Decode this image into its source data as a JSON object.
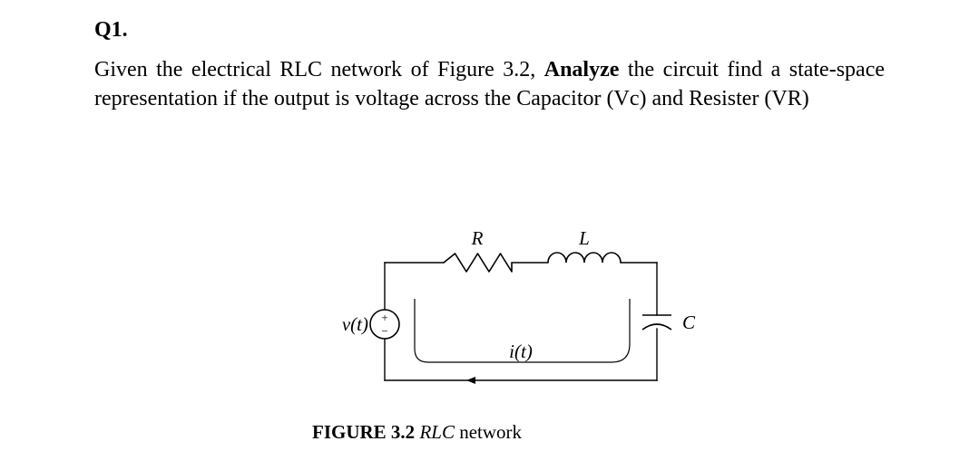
{
  "question": {
    "label": "Q1.",
    "text_part1": "Given the electrical RLC network of Figure 3.2, ",
    "analyze_word": "Analyze",
    "text_part2": " the circuit  find a state-space representation if the output is voltage across the Capacitor (Vc) and Resister (VR)"
  },
  "circuit": {
    "labels": {
      "resistor": "R",
      "inductor": "L",
      "capacitor": "C",
      "source": "v(t)",
      "current": "i(t)",
      "source_plus": "+",
      "source_minus": "−"
    },
    "caption_bold": "FIGURE 3.2",
    "caption_space": "    ",
    "caption_italic": "RLC",
    "caption_rest": " network",
    "style": {
      "stroke_color": "#000000",
      "wire_width": 1.4,
      "component_width": 1.6,
      "text_color": "#000000",
      "label_fontsize": 21,
      "label_fontstyle": "italic",
      "source_polarity_fontsize": 13,
      "background": "#ffffff",
      "arrow_fill": "#000000",
      "arrow_length": 10,
      "arrow_halfwidth": 4,
      "resistor_humps": 3,
      "inductor_loops": 4,
      "source_radius": 16
    }
  }
}
